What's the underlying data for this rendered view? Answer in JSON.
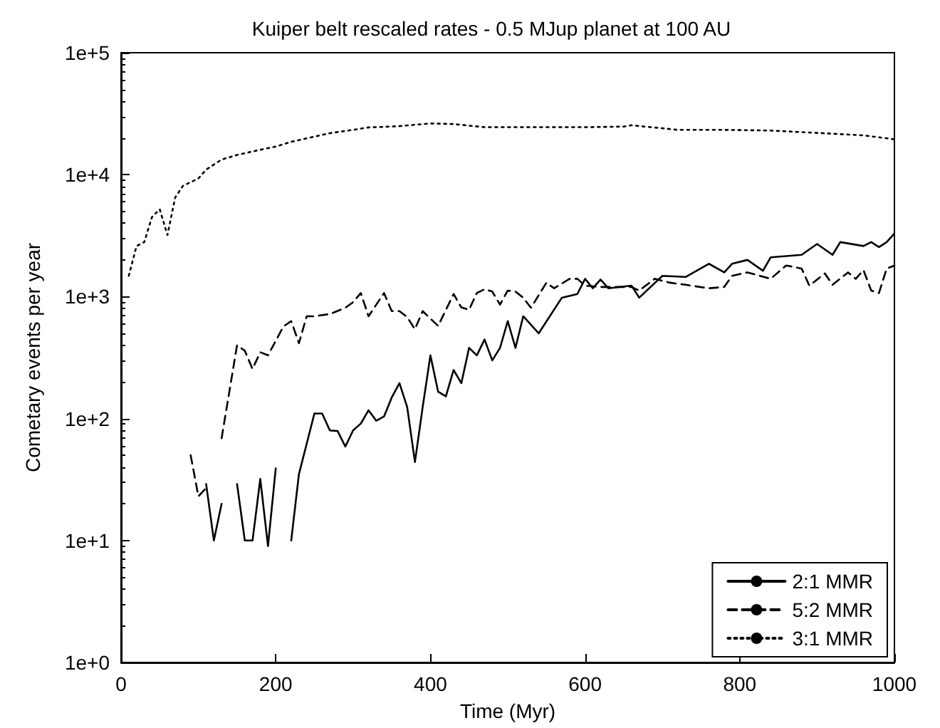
{
  "chart_data": {
    "type": "line",
    "title": "Kuiper belt rescaled rates - 0.5 MJup planet at 100 AU",
    "xlabel": "Time (Myr)",
    "ylabel": "Cometary events per year",
    "xlim": [
      0,
      1000
    ],
    "xticks": [
      0,
      200,
      400,
      600,
      800,
      1000
    ],
    "ylim": [
      1,
      100000
    ],
    "yticks": [
      {
        "value": 1,
        "label": "1e+0"
      },
      {
        "value": 10,
        "label": "1e+1"
      },
      {
        "value": 100,
        "label": "1e+2"
      },
      {
        "value": 1000,
        "label": "1e+3"
      },
      {
        "value": 10000,
        "label": "1e+4"
      },
      {
        "value": 100000,
        "label": "1e+5"
      }
    ],
    "log": "y",
    "legend": "bottom right",
    "series": [
      {
        "name": "2:1 MMR",
        "color": "#000000",
        "line_style": "solid",
        "x": [
          110,
          120,
          130,
          140,
          150,
          160,
          170,
          180,
          190,
          200,
          210,
          220,
          230,
          250,
          260,
          270,
          280,
          290,
          300,
          310,
          320,
          330,
          340,
          350,
          360,
          370,
          380,
          390,
          400,
          410,
          420,
          430,
          440,
          450,
          460,
          470,
          480,
          490,
          500,
          510,
          520,
          540,
          570,
          590,
          600,
          610,
          620,
          630,
          660,
          670,
          700,
          730,
          760,
          780,
          790,
          810,
          830,
          840,
          880,
          900,
          920,
          930,
          960,
          970,
          980,
          990,
          1000
        ],
        "values": [
          29,
          10,
          20,
          null,
          29,
          10,
          10,
          32,
          9,
          39,
          null,
          10,
          35,
          110,
          110,
          80,
          79,
          59,
          80,
          91,
          117,
          96,
          104,
          149,
          195,
          124,
          44,
          124,
          330,
          166,
          152,
          250,
          195,
          380,
          330,
          445,
          300,
          380,
          630,
          380,
          690,
          500,
          980,
          1050,
          1400,
          1170,
          1380,
          1170,
          1230,
          980,
          1480,
          1450,
          1860,
          1580,
          1860,
          2000,
          1630,
          2100,
          2200,
          2700,
          2200,
          2800,
          2600,
          2800,
          2550,
          2800,
          3300
        ]
      },
      {
        "name": "5:2 MMR",
        "color": "#000000",
        "line_style": "dashed",
        "x": [
          90,
          100,
          110,
          120,
          130,
          150,
          160,
          170,
          180,
          190,
          210,
          220,
          230,
          240,
          250,
          270,
          290,
          300,
          310,
          320,
          340,
          350,
          360,
          370,
          380,
          390,
          400,
          410,
          430,
          440,
          450,
          460,
          470,
          480,
          490,
          500,
          510,
          520,
          530,
          550,
          560,
          580,
          590,
          600,
          620,
          660,
          670,
          690,
          710,
          730,
          760,
          780,
          790,
          810,
          840,
          860,
          880,
          890,
          910,
          920,
          940,
          950,
          960,
          970,
          980,
          990,
          1000
        ],
        "values": [
          50,
          23,
          27,
          null,
          69,
          400,
          360,
          255,
          350,
          330,
          570,
          630,
          415,
          690,
          690,
          720,
          810,
          900,
          1070,
          690,
          1070,
          760,
          760,
          680,
          540,
          760,
          660,
          575,
          1050,
          815,
          780,
          1070,
          1150,
          1100,
          860,
          1120,
          1100,
          980,
          810,
          1300,
          1170,
          1400,
          1400,
          1230,
          1200,
          1200,
          1120,
          1400,
          1300,
          1250,
          1170,
          1200,
          1480,
          1580,
          1400,
          1800,
          1700,
          1230,
          1550,
          1250,
          1580,
          1400,
          1650,
          1120,
          1070,
          1700,
          1800
        ]
      },
      {
        "name": "3:1 MMR",
        "color": "#000000",
        "line_style": "dotted",
        "x": [
          10,
          20,
          30,
          40,
          50,
          60,
          70,
          80,
          100,
          110,
          130,
          150,
          180,
          200,
          220,
          250,
          270,
          300,
          320,
          360,
          400,
          430,
          470,
          500,
          550,
          600,
          650,
          660,
          700,
          720,
          780,
          840,
          900,
          960,
          1000
        ],
        "values": [
          1480,
          2600,
          2800,
          4500,
          5200,
          3200,
          6500,
          8100,
          9300,
          11000,
          13300,
          14500,
          16000,
          17000,
          18600,
          20500,
          21900,
          23300,
          24400,
          25000,
          26300,
          26000,
          24500,
          24500,
          24500,
          24500,
          24800,
          25400,
          24000,
          23300,
          23300,
          23000,
          22000,
          21000,
          19500
        ]
      }
    ]
  }
}
